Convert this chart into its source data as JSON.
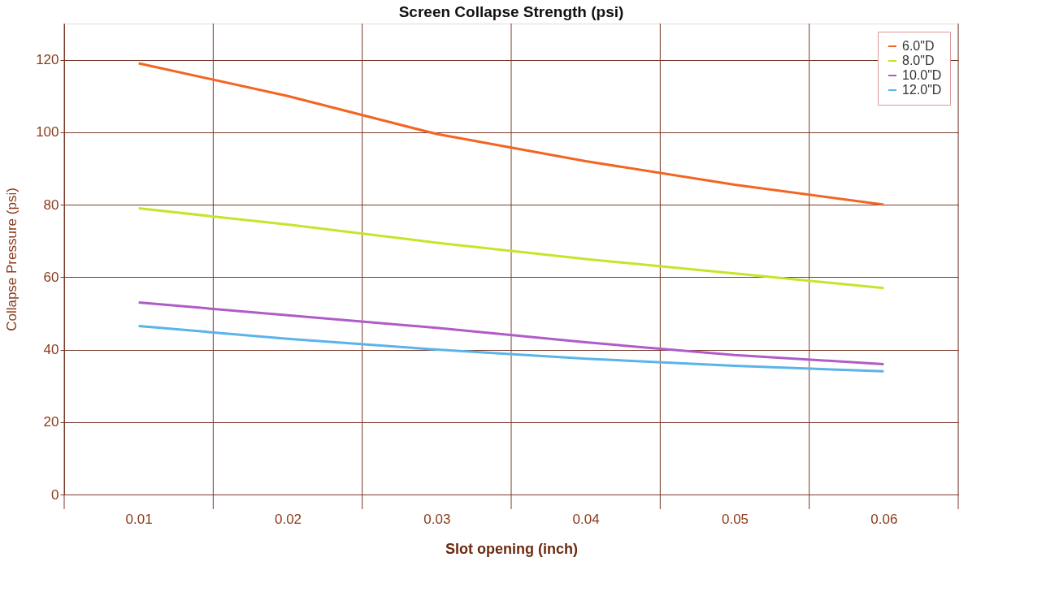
{
  "chart_data": {
    "type": "line",
    "title": "Screen Collapse Strength (psi)",
    "xlabel": "Slot opening (inch)",
    "ylabel": "Collapse Pressure (psi)",
    "x": [
      0.01,
      0.02,
      0.03,
      0.04,
      0.05,
      0.06
    ],
    "series": [
      {
        "name": "6.0\"D",
        "color": "#f26522",
        "values": [
          119,
          110,
          99.5,
          92,
          85.5,
          80
        ]
      },
      {
        "name": "8.0\"D",
        "color": "#c4e62a",
        "values": [
          79,
          74.5,
          69.5,
          65,
          61,
          57
        ]
      },
      {
        "name": "10.0\"D",
        "color": "#b05cc8",
        "values": [
          53,
          49.5,
          46,
          42,
          38.5,
          36
        ]
      },
      {
        "name": "12.0\"D",
        "color": "#5ab4ea",
        "values": [
          46.5,
          43,
          40,
          37.5,
          35.5,
          34
        ]
      }
    ],
    "xlim": [
      0.005,
      0.065
    ],
    "xticks": [
      {
        "value": 0.005,
        "label": null
      },
      0.01,
      {
        "value": 0.015,
        "label": null
      },
      0.02,
      {
        "value": 0.025,
        "label": null
      },
      0.03,
      {
        "value": 0.035,
        "label": null
      },
      0.04,
      {
        "value": 0.045,
        "label": null
      },
      0.05,
      {
        "value": 0.055,
        "label": null
      },
      0.06,
      {
        "value": 0.065,
        "label": null
      }
    ],
    "ylim": [
      0,
      130
    ],
    "yticks": [
      0,
      20,
      40,
      60,
      80,
      100,
      120
    ],
    "grid": true,
    "legend": "top right",
    "marker": "none",
    "line_style": "solid"
  }
}
